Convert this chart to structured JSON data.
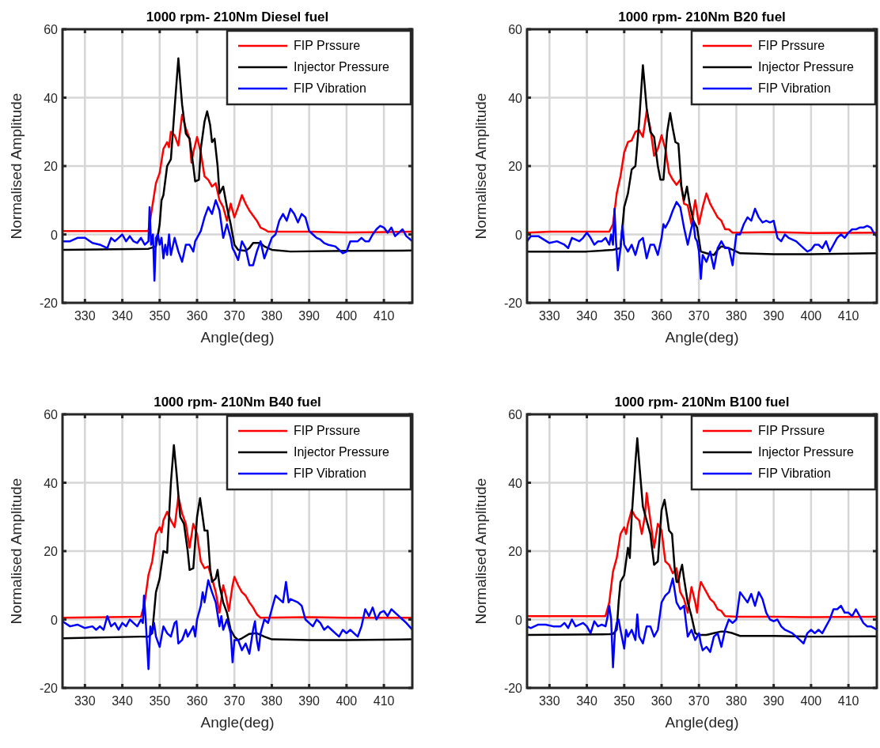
{
  "chart_data": [
    {
      "type": "line",
      "title": "1000 rpm- 210Nm Diesel fuel",
      "xlabel": "Angle(deg)",
      "ylabel": "Normalised Amplitude",
      "xlim": [
        324,
        417.6
      ],
      "xticks": [
        330,
        340,
        350,
        360,
        370,
        380,
        390,
        400,
        410
      ],
      "ylim": [
        -20,
        60
      ],
      "yticks": [
        -20,
        0,
        20,
        40,
        60
      ],
      "grid": true,
      "legend": "top right",
      "series": [
        {
          "name": "FIP Prssure",
          "color": "#ff0000",
          "x": [
            324,
            347,
            348,
            349,
            350,
            351,
            352,
            352.5,
            353,
            354,
            355,
            356,
            357,
            358,
            358.5,
            359,
            360,
            361,
            362,
            363,
            364,
            365,
            366,
            367,
            368,
            369,
            370,
            371,
            372,
            373,
            374,
            376,
            377,
            378,
            379,
            390,
            400,
            417.6
          ],
          "values": [
            1,
            1,
            8,
            15,
            18,
            25,
            27,
            25.5,
            30,
            29,
            26,
            35,
            31,
            28,
            21,
            24,
            28.5,
            24,
            17,
            16,
            14,
            15,
            10,
            8,
            4,
            9,
            5,
            8,
            11.5,
            9,
            7,
            4,
            2,
            1.5,
            0.8,
            0.8,
            0.6,
            0.8
          ]
        },
        {
          "name": "Injector Pressure",
          "color": "#000000",
          "x": [
            324,
            347,
            349,
            350,
            350.5,
            351,
            352,
            353,
            354,
            355,
            356,
            357,
            358,
            359,
            359.5,
            360.5,
            361,
            362,
            362.7,
            363.5,
            364,
            364.7,
            365.5,
            366,
            367,
            368,
            369,
            370,
            371,
            373,
            374,
            375,
            377,
            378,
            380,
            385,
            400,
            417.6
          ],
          "values": [
            -4.5,
            -4.2,
            -3.5,
            3,
            10,
            11.5,
            20,
            22,
            37,
            51.5,
            38,
            29.5,
            28,
            20,
            15.5,
            16,
            25,
            33,
            36,
            32,
            27,
            28,
            20,
            12,
            14,
            8,
            3,
            -3,
            -4.5,
            -4.8,
            -4,
            -2.5,
            -2.5,
            -3.5,
            -4.5,
            -5,
            -4.8,
            -4.7
          ]
        },
        {
          "name": "FIP Vibration",
          "color": "#0000ff",
          "x": [
            324,
            326,
            328,
            330,
            332,
            334,
            336,
            337,
            338,
            339,
            340,
            341,
            342,
            343,
            344,
            345,
            346,
            347,
            347.3,
            347.7,
            348.2,
            348.6,
            349,
            349.5,
            350,
            350.5,
            351,
            351.5,
            352,
            352.5,
            353,
            354,
            355,
            356,
            357,
            358,
            359,
            359.5,
            360,
            361,
            362,
            363,
            364,
            365,
            366,
            367,
            368,
            369,
            369.5,
            370,
            371,
            372,
            373,
            374,
            375,
            376,
            377,
            378,
            379,
            380,
            381,
            382,
            383,
            384,
            385,
            386,
            387,
            388,
            389,
            390,
            391,
            392,
            393,
            394,
            395,
            397,
            399,
            400,
            401,
            403,
            404,
            405,
            406,
            407,
            408,
            409,
            410,
            411,
            412,
            413,
            414,
            415,
            416,
            417.6
          ],
          "values": [
            -2,
            -2,
            -1,
            -1,
            -2.5,
            -3,
            -4,
            -1,
            -2,
            -1,
            0,
            -2,
            -0.5,
            -2,
            -2.5,
            -1,
            -3,
            -2,
            8,
            -3,
            0,
            -13.5,
            -1,
            0,
            -3,
            -1,
            -7,
            -3,
            -6,
            0,
            -6,
            -1,
            -5,
            -8,
            -3,
            -3,
            -5,
            -2,
            -1,
            1,
            5,
            8,
            6,
            10,
            7,
            -1,
            3,
            -1,
            -4,
            -5,
            -7.5,
            -2,
            -4,
            -9,
            -9,
            -5,
            -2,
            -7,
            -4,
            -1,
            0,
            4,
            6,
            4,
            7.5,
            6,
            3.5,
            6,
            5,
            1,
            0,
            -1,
            -1.5,
            -2.5,
            -3,
            -3.5,
            -5.5,
            -5,
            -2,
            -2,
            -1,
            -2,
            -2,
            0,
            1.5,
            2.5,
            2,
            0.5,
            2,
            -0.5,
            0.5,
            1.5,
            -0.5,
            -2
          ]
        }
      ]
    },
    {
      "type": "line",
      "title": "1000 rpm- 210Nm B20 fuel",
      "xlabel": "Angle(deg)",
      "ylabel": "Normalised Amplitude",
      "xlim": [
        324,
        417.6
      ],
      "xticks": [
        330,
        340,
        350,
        360,
        370,
        380,
        390,
        400,
        410
      ],
      "ylim": [
        -20,
        60
      ],
      "yticks": [
        -20,
        0,
        20,
        40,
        60
      ],
      "grid": true,
      "legend": "top right",
      "series": [
        {
          "name": "FIP Prssure",
          "color": "#ff0000",
          "x": [
            324,
            330,
            346,
            347,
            348,
            349,
            350,
            351,
            352,
            353,
            354,
            355,
            356,
            357,
            358,
            359,
            360,
            361,
            362,
            363,
            364,
            365,
            366,
            367,
            368,
            369,
            370,
            371,
            372,
            373,
            374,
            375,
            376,
            377,
            378,
            379,
            390,
            400,
            417.6
          ],
          "values": [
            0.5,
            0.8,
            0.8,
            3,
            12,
            17,
            24,
            27,
            27.5,
            30,
            30.5,
            28.5,
            36,
            31,
            23,
            25,
            29,
            25,
            18,
            16,
            14.5,
            16,
            9,
            8.5,
            3,
            10,
            3,
            8,
            12,
            9,
            7,
            5,
            4,
            1.5,
            1.5,
            0.5,
            0.7,
            0.4,
            0.5
          ]
        },
        {
          "name": "Injector Pressure",
          "color": "#000000",
          "x": [
            324,
            340,
            347,
            349,
            350,
            351,
            352,
            353,
            354,
            355,
            356,
            357,
            358,
            359,
            359.7,
            360.5,
            361.5,
            362.3,
            363,
            363.7,
            364.5,
            365.3,
            366,
            366.8,
            367.5,
            368.5,
            369.5,
            370.5,
            372,
            374,
            375,
            376,
            378,
            379,
            381,
            390,
            400,
            417.6
          ],
          "values": [
            -5,
            -5,
            -4.5,
            -4,
            8,
            12,
            19,
            20,
            33,
            49.5,
            37,
            30,
            28.5,
            20,
            16,
            16,
            30,
            35.5,
            31,
            27,
            26.5,
            14,
            10,
            14,
            9,
            4,
            2,
            -5,
            -5.5,
            -6,
            -4.5,
            -3.5,
            -4,
            -4.5,
            -5.5,
            -5.8,
            -5.8,
            -5.5
          ]
        },
        {
          "name": "FIP Vibration",
          "color": "#0000ff",
          "x": [
            324,
            325,
            327,
            330,
            332,
            334,
            335,
            336,
            338,
            339,
            340,
            341,
            342,
            343,
            344,
            345,
            346,
            346.5,
            347,
            347.4,
            347.8,
            348.3,
            349,
            349.5,
            350,
            351,
            352,
            353,
            354,
            355,
            356,
            357,
            358,
            359,
            360,
            360.5,
            361,
            362,
            363,
            364,
            365,
            366,
            367,
            368,
            368.5,
            369,
            369.5,
            370,
            370.5,
            371,
            372,
            373,
            374,
            375,
            376,
            377,
            378,
            379,
            380,
            381,
            382,
            383,
            384,
            385,
            386,
            387,
            388,
            389,
            390,
            391,
            392,
            393,
            394,
            396,
            398,
            399,
            400,
            401,
            402,
            403,
            404,
            405,
            406,
            407,
            408,
            409,
            410,
            411,
            412,
            413,
            414,
            415,
            416,
            417,
            417.6
          ],
          "values": [
            -2,
            -0.5,
            -0.5,
            -2.5,
            -2,
            -3,
            -4,
            -1,
            -2,
            -1,
            0.5,
            -1,
            -3,
            -2,
            -2,
            -1,
            -3,
            0,
            -3,
            7.5,
            -2,
            -10.5,
            -4,
            2.5,
            -3,
            -5,
            -3,
            -6,
            -2,
            -1,
            -7,
            -3,
            -3,
            -6,
            -1,
            3,
            2,
            4,
            7,
            9.5,
            8,
            2,
            -3,
            2,
            4,
            -1,
            -2,
            -5,
            -13,
            -6,
            -8,
            -5,
            -10,
            -4,
            -2,
            -4,
            -4,
            -9,
            0,
            0,
            3,
            5,
            4,
            7.5,
            5,
            3.5,
            4,
            3.5,
            4,
            -1,
            -2,
            0,
            -1,
            -2,
            -4,
            -5,
            -4.5,
            -3,
            -3,
            -4,
            -2,
            -5,
            -3,
            -1,
            0,
            -1,
            0.5,
            1.5,
            1.5,
            2,
            2,
            2.5,
            2,
            0,
            -0.5
          ]
        }
      ]
    },
    {
      "type": "line",
      "title": "1000 rpm- 210Nm B40 fuel",
      "xlabel": "Angle(deg)",
      "ylabel": "Normalised Amplitude",
      "xlim": [
        324,
        417.6
      ],
      "xticks": [
        330,
        340,
        350,
        360,
        370,
        380,
        390,
        400,
        410
      ],
      "ylim": [
        -20,
        60
      ],
      "yticks": [
        -20,
        0,
        20,
        40,
        60
      ],
      "grid": true,
      "legend": "top right",
      "series": [
        {
          "name": "FIP Prssure",
          "color": "#ff0000",
          "x": [
            324,
            345,
            346,
            347,
            348,
            349,
            350,
            350.5,
            351,
            352,
            353,
            354,
            355,
            356,
            357,
            358,
            359,
            360,
            361,
            362,
            363,
            364,
            365,
            366,
            367,
            367.7,
            368.5,
            369.5,
            370,
            371,
            372,
            373,
            374,
            375,
            376,
            377,
            390,
            400,
            417.6
          ],
          "values": [
            0.5,
            0.8,
            5,
            13,
            17,
            25,
            27,
            25.5,
            29,
            31.5,
            29,
            27,
            36,
            31,
            28,
            21,
            28,
            25,
            17,
            15,
            15.5,
            12,
            8,
            2,
            10,
            7,
            2.5,
            10,
            12.5,
            10,
            8,
            7,
            5,
            3.5,
            1.5,
            0.5,
            0.7,
            0.5,
            0.5
          ]
        },
        {
          "name": "Injector Pressure",
          "color": "#000000",
          "x": [
            324,
            345,
            347,
            348,
            348.5,
            349,
            350,
            351,
            352,
            353,
            353.8,
            354.5,
            355.5,
            356.5,
            357.5,
            358,
            359,
            360,
            360.8,
            361.5,
            362,
            362.8,
            363.5,
            364,
            365,
            365.5,
            366,
            367,
            368,
            369,
            370,
            371,
            372,
            374,
            376,
            378,
            380,
            390,
            400,
            417.6
          ],
          "values": [
            -5.5,
            -5,
            -5,
            -4,
            2,
            8,
            12,
            20,
            19.5,
            40,
            51,
            43,
            30,
            28,
            20,
            14.5,
            15,
            30,
            35.5,
            30,
            26,
            26,
            15,
            11,
            12,
            14.5,
            10,
            5,
            2,
            -3,
            -5,
            -6,
            -5.5,
            -4.2,
            -4,
            -5,
            -5.8,
            -6,
            -6,
            -5.8
          ]
        },
        {
          "name": "FIP Vibration",
          "color": "#0000ff",
          "x": [
            324,
            326,
            328,
            330,
            332,
            333,
            334,
            335,
            336,
            337,
            338,
            339,
            340,
            341,
            342,
            343,
            344,
            345,
            345.5,
            345.8,
            346.3,
            347,
            347.5,
            348,
            348.5,
            349,
            350,
            351,
            352,
            353,
            354,
            354.5,
            355,
            356,
            357,
            357.5,
            358,
            359,
            359.5,
            360,
            361,
            361.5,
            362,
            363,
            364,
            365,
            366,
            366.5,
            367,
            368,
            369,
            369.5,
            370,
            371,
            372,
            373,
            374,
            375,
            375.5,
            376,
            376.5,
            377,
            378,
            379,
            380,
            381,
            382,
            383,
            383.8,
            384.5,
            385,
            387,
            388,
            389,
            390,
            391,
            392,
            393,
            394,
            395,
            396,
            397,
            398,
            399,
            400,
            401,
            402,
            403,
            404,
            405,
            406,
            407,
            408,
            409,
            410,
            411,
            412,
            413,
            414,
            415,
            416,
            417.6
          ],
          "values": [
            -0.5,
            -2,
            -1.5,
            -2.5,
            -2,
            -3,
            -2,
            -3,
            1,
            -2,
            -1,
            -3,
            -1,
            -2,
            0,
            -1,
            -2,
            0,
            -1,
            7,
            -1,
            -14.5,
            -2,
            -4,
            -1,
            -5,
            -8,
            -2,
            -4,
            -5,
            -1,
            -0.5,
            -7,
            -6,
            -3,
            -5,
            -4,
            -2,
            -5,
            0,
            4,
            8,
            5,
            11.5,
            8,
            5,
            -2,
            1,
            -3,
            0,
            -4,
            -12.5,
            -6,
            -6,
            -9,
            -7,
            -10,
            -3,
            -0.5,
            -6,
            -9,
            -4,
            0,
            -1,
            3,
            7,
            6,
            5,
            11,
            5,
            6,
            5,
            4,
            0,
            -1,
            -2,
            0,
            -1,
            -3,
            -2,
            -3,
            -4,
            -5,
            -3,
            -4,
            -3,
            -4,
            -5,
            -2,
            3,
            1,
            3.5,
            0,
            2,
            2.5,
            1,
            3,
            2,
            1,
            0,
            -1,
            -3
          ]
        }
      ]
    },
    {
      "type": "line",
      "title": "1000 rpm- 210Nm B100 fuel",
      "xlabel": "Angle(deg)",
      "ylabel": "Normalised Amplitude",
      "xlim": [
        324,
        417.6
      ],
      "xticks": [
        330,
        340,
        350,
        360,
        370,
        380,
        390,
        400,
        410
      ],
      "ylim": [
        -20,
        60
      ],
      "yticks": [
        -20,
        0,
        20,
        40,
        60
      ],
      "grid": true,
      "legend": "top right",
      "series": [
        {
          "name": "FIP Prssure",
          "color": "#ff0000",
          "x": [
            324,
            345,
            346,
            347,
            348,
            349,
            350,
            350.5,
            351,
            352,
            353,
            354,
            354.7,
            355.5,
            356,
            357,
            358,
            359,
            360,
            361,
            362,
            363,
            364,
            365,
            366,
            367,
            368,
            369,
            369.5,
            370,
            370.5,
            371,
            372,
            373,
            374,
            375,
            376,
            377,
            380,
            390,
            400,
            417.6
          ],
          "values": [
            1,
            1,
            5,
            14,
            18,
            25,
            27,
            25,
            28,
            32,
            30,
            29,
            25,
            30,
            37,
            29,
            21,
            28,
            26,
            17,
            16,
            13.5,
            15,
            8,
            6,
            2,
            9.5,
            5,
            2,
            8,
            11,
            10,
            8,
            6,
            5,
            3,
            2.5,
            1,
            0.8,
            0.8,
            0.7,
            0.8
          ]
        },
        {
          "name": "Injector Pressure",
          "color": "#000000",
          "x": [
            324,
            346,
            347,
            348,
            348.5,
            349,
            350,
            351,
            351.5,
            352,
            353,
            353.5,
            354,
            355,
            356,
            357,
            358,
            359,
            360,
            360.8,
            361.5,
            362,
            362.8,
            363.5,
            364,
            364.5,
            365,
            365.5,
            366,
            367,
            368,
            369,
            370,
            372,
            374,
            376,
            377,
            379,
            381,
            390,
            400,
            417.6
          ],
          "values": [
            -4.5,
            -4.3,
            -4.2,
            -3,
            5,
            11,
            13,
            21,
            18,
            30,
            46,
            53,
            46,
            33,
            29,
            25,
            16,
            17,
            32,
            35,
            30,
            26,
            25,
            15,
            11,
            11,
            14,
            16,
            12,
            5,
            1,
            -4,
            -4.5,
            -4.5,
            -4,
            -3.5,
            -3.5,
            -4,
            -4.8,
            -4.8,
            -5,
            -4.9
          ]
        },
        {
          "name": "FIP Vibration",
          "color": "#0000ff",
          "x": [
            324,
            325,
            327,
            329,
            331,
            333,
            334,
            335,
            336,
            337,
            339,
            340,
            341,
            342,
            343,
            344,
            345,
            345.5,
            346,
            346.5,
            347,
            347.5,
            348,
            348.5,
            349,
            350,
            350.5,
            351,
            352,
            353,
            353.5,
            354,
            355,
            356,
            357,
            358,
            359,
            360,
            361,
            362,
            363,
            364,
            365,
            366,
            367,
            368,
            369,
            370,
            370.5,
            371,
            372,
            373,
            374,
            375,
            376,
            377,
            378,
            379,
            380,
            381,
            382,
            383,
            384,
            385,
            386,
            387,
            388,
            389,
            390,
            391,
            392,
            393,
            395,
            397,
            398,
            399,
            400,
            401,
            402,
            403,
            404,
            405,
            406,
            407,
            408,
            409,
            410,
            411,
            412,
            413,
            414,
            415,
            416,
            417.6
          ],
          "values": [
            -2,
            -2.5,
            -1.5,
            -1.5,
            -2,
            -2,
            -1,
            -2.5,
            0,
            -2,
            -1,
            -2,
            -4,
            -0.5,
            -2,
            -1.5,
            -2,
            0.5,
            4,
            0,
            -14,
            -4,
            -1,
            0,
            -3,
            -8.5,
            -3,
            -5,
            -3,
            -6,
            1.5,
            -5,
            -7,
            -2,
            -2,
            -5,
            -3,
            5,
            7,
            8,
            12,
            5,
            3,
            4,
            -5,
            -3,
            -6,
            -4,
            -7,
            -9,
            -8,
            -9.5,
            -5,
            -4,
            -8,
            -3,
            0,
            -1,
            0,
            8,
            6.5,
            5,
            7.5,
            4,
            8,
            6,
            2,
            0,
            -0.5,
            0,
            -2,
            -3,
            -4,
            -6,
            -7,
            -4,
            -3,
            -4,
            -3,
            -4,
            -2,
            0,
            3,
            3,
            4,
            2,
            2,
            1,
            3,
            1,
            -1,
            -2,
            -2,
            -3
          ]
        }
      ]
    }
  ]
}
